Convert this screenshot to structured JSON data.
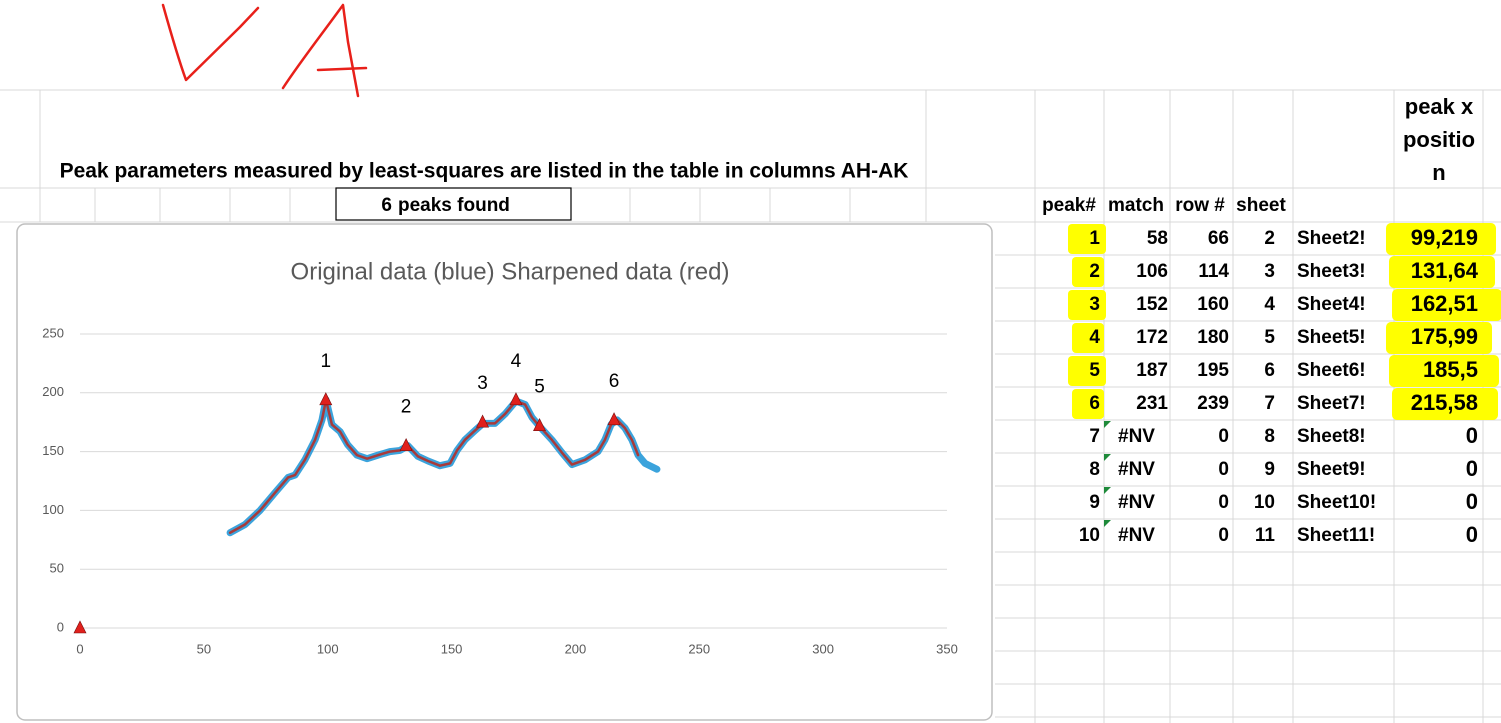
{
  "header": {
    "title": "Peak parameters measured by least-squares are listed in the table in columns AH-AK",
    "peaks_found": {
      "count": 6,
      "label": "peaks found"
    }
  },
  "chart_data": {
    "type": "line",
    "title": "Original data (blue)   Sharpened data (red)",
    "x": [
      60.6,
      66.6,
      72.7,
      78.7,
      84,
      86.8,
      90.8,
      94.9,
      97.7,
      99.3,
      101.7,
      105,
      108,
      111.8,
      115.9,
      120.3,
      125.1,
      129.2,
      132.4,
      136.4,
      140.5,
      145.3,
      149.4,
      152.2,
      155.4,
      159.5,
      162.7,
      167.5,
      171.6,
      176,
      179.7,
      182.5,
      185.7,
      190.5,
      194.6,
      198.6,
      203.9,
      209.1,
      211.9,
      214.4,
      216.8,
      220,
      222.8,
      225.3,
      228.1,
      232.9
    ],
    "series": [
      {
        "color": "#3ba3dc",
        "values": [
          81,
          88,
          100,
          115,
          128,
          130,
          143,
          160,
          177,
          194,
          173,
          167,
          156,
          147,
          144,
          147,
          150,
          151,
          155,
          146,
          142,
          138,
          140,
          151,
          160,
          168,
          174,
          174,
          182,
          193,
          190,
          179,
          171,
          160,
          149,
          139,
          143,
          150,
          160,
          173,
          177,
          170,
          160,
          147,
          140,
          135
        ]
      },
      {
        "color": "#a83a3a",
        "values": [
          81,
          88,
          100,
          115,
          128,
          130,
          143,
          160,
          177,
          194,
          173,
          167,
          156,
          147,
          144,
          147,
          150,
          151,
          155,
          146,
          142,
          138,
          140,
          151,
          160,
          168,
          174,
          174,
          182,
          193,
          190,
          179,
          171,
          160,
          149,
          139,
          143,
          150,
          160,
          173,
          177,
          170,
          160,
          147,
          null,
          null
        ]
      }
    ],
    "peaks": {
      "color": "#e0201c",
      "x": [
        0,
        99.219,
        131.64,
        162.51,
        175.99,
        185.5,
        215.58
      ],
      "values": [
        0,
        194,
        155,
        175,
        194,
        172,
        177
      ],
      "labels": [
        null,
        "1",
        "2",
        "3",
        "4",
        "5",
        "6"
      ]
    },
    "xlim": [
      0,
      350
    ],
    "xticks": [
      0,
      50,
      100,
      150,
      200,
      250,
      300,
      350
    ],
    "ylim": [
      0,
      250
    ],
    "yticks": [
      0,
      50,
      100,
      150,
      200,
      250
    ],
    "grid": true
  },
  "table": {
    "columns": [
      "peak#",
      "match",
      "row #",
      "sheet",
      null,
      "peak x position"
    ],
    "rows": [
      [
        1,
        58,
        66,
        2,
        "Sheet2!",
        "99,219"
      ],
      [
        2,
        106,
        114,
        3,
        "Sheet3!",
        "131,64"
      ],
      [
        3,
        152,
        160,
        4,
        "Sheet4!",
        "162,51"
      ],
      [
        4,
        172,
        180,
        5,
        "Sheet5!",
        "175,99"
      ],
      [
        5,
        187,
        195,
        6,
        "Sheet6!",
        "185,5"
      ],
      [
        6,
        231,
        239,
        7,
        "Sheet7!",
        "215,58"
      ],
      [
        7,
        "#NV",
        0,
        8,
        "Sheet8!",
        0
      ],
      [
        8,
        "#NV",
        0,
        9,
        "Sheet9!",
        0
      ],
      [
        9,
        "#NV",
        0,
        10,
        "Sheet10!",
        0
      ],
      [
        10,
        "#NV",
        0,
        11,
        "Sheet11!",
        0
      ]
    ]
  }
}
